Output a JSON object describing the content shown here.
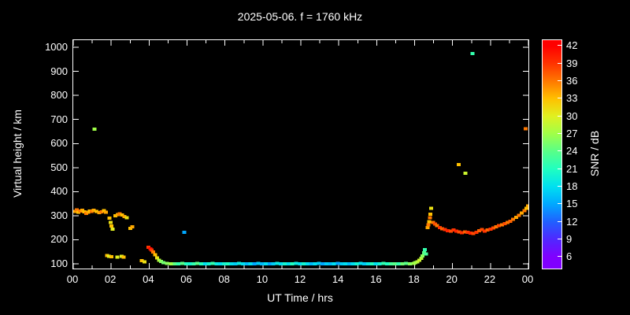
{
  "page": {
    "background": "#000000",
    "text_color": "#ffffff"
  },
  "chart_data": {
    "type": "scatter",
    "title": "2025-05-06. f = 1760 kHz",
    "xlabel": "UT Time / hrs",
    "ylabel": "Virtual height / km",
    "cblabel": "SNR / dB",
    "x_range": [
      0,
      24
    ],
    "y_range": [
      80,
      1030
    ],
    "cb_range": [
      4,
      43
    ],
    "x_ticks": [
      {
        "v": 0,
        "label": "00"
      },
      {
        "v": 2,
        "label": "02"
      },
      {
        "v": 4,
        "label": "04"
      },
      {
        "v": 6,
        "label": "06"
      },
      {
        "v": 8,
        "label": "08"
      },
      {
        "v": 10,
        "label": "10"
      },
      {
        "v": 12,
        "label": "12"
      },
      {
        "v": 14,
        "label": "14"
      },
      {
        "v": 16,
        "label": "16"
      },
      {
        "v": 18,
        "label": "18"
      },
      {
        "v": 20,
        "label": "20"
      },
      {
        "v": 22,
        "label": "22"
      },
      {
        "v": 24,
        "label": "00"
      }
    ],
    "x_minor_ticks": [
      1,
      3,
      5,
      7,
      9,
      11,
      13,
      15,
      17,
      19,
      21,
      23
    ],
    "y_ticks": [
      100,
      200,
      300,
      400,
      500,
      600,
      700,
      800,
      900,
      1000
    ],
    "cb_ticks": [
      6,
      9,
      12,
      15,
      18,
      21,
      24,
      27,
      30,
      33,
      36,
      39,
      42
    ],
    "colormap": [
      {
        "v": 6,
        "c": "#8000ff"
      },
      {
        "v": 9,
        "c": "#5028ff"
      },
      {
        "v": 12,
        "c": "#2060ff"
      },
      {
        "v": 15,
        "c": "#00a8ff"
      },
      {
        "v": 18,
        "c": "#00e0f0"
      },
      {
        "v": 21,
        "c": "#20ffc0"
      },
      {
        "v": 24,
        "c": "#58ff88"
      },
      {
        "v": 27,
        "c": "#a0ff48"
      },
      {
        "v": 30,
        "c": "#e0f020"
      },
      {
        "v": 33,
        "c": "#ffc000"
      },
      {
        "v": 36,
        "c": "#ff7800"
      },
      {
        "v": 39,
        "c": "#ff3400"
      },
      {
        "v": 42,
        "c": "#ff0000"
      }
    ],
    "grid": false,
    "points": [
      [
        0.08,
        318,
        34
      ],
      [
        0.18,
        324,
        36
      ],
      [
        0.28,
        314,
        33
      ],
      [
        0.38,
        319,
        36
      ],
      [
        0.48,
        323,
        34
      ],
      [
        0.58,
        316,
        33
      ],
      [
        0.68,
        310,
        36
      ],
      [
        0.78,
        314,
        34
      ],
      [
        0.88,
        319,
        33
      ],
      [
        0.98,
        317,
        36
      ],
      [
        1.08,
        322,
        34
      ],
      [
        1.12,
        660,
        27
      ],
      [
        1.22,
        318,
        33
      ],
      [
        1.36,
        312,
        34
      ],
      [
        1.5,
        316,
        36
      ],
      [
        1.62,
        321,
        33
      ],
      [
        1.72,
        314,
        34
      ],
      [
        1.78,
        134,
        33
      ],
      [
        1.88,
        131,
        30
      ],
      [
        2.02,
        129,
        33
      ],
      [
        2.32,
        127,
        30
      ],
      [
        2.56,
        130,
        30
      ],
      [
        2.66,
        127,
        33
      ],
      [
        1.92,
        290,
        33
      ],
      [
        1.97,
        272,
        31
      ],
      [
        2.02,
        257,
        33
      ],
      [
        2.07,
        243,
        30
      ],
      [
        2.22,
        299,
        33
      ],
      [
        2.34,
        304,
        34
      ],
      [
        2.46,
        308,
        36
      ],
      [
        2.58,
        302,
        33
      ],
      [
        2.7,
        297,
        34
      ],
      [
        2.82,
        291,
        31
      ],
      [
        3.02,
        247,
        33
      ],
      [
        3.12,
        254,
        34
      ],
      [
        3.62,
        112,
        33
      ],
      [
        3.76,
        108,
        31
      ],
      [
        3.96,
        168,
        39
      ],
      [
        4.06,
        162,
        42
      ],
      [
        4.14,
        157,
        39
      ],
      [
        4.22,
        149,
        36
      ],
      [
        4.32,
        137,
        33
      ],
      [
        4.42,
        125,
        31
      ],
      [
        4.52,
        115,
        28
      ],
      [
        4.62,
        109,
        26
      ],
      [
        4.75,
        104,
        25
      ],
      [
        4.95,
        101,
        26
      ],
      [
        5.15,
        100,
        27
      ],
      [
        5.35,
        99,
        24
      ],
      [
        5.55,
        100,
        22
      ],
      [
        5.75,
        101,
        24
      ],
      [
        5.85,
        230,
        15
      ],
      [
        5.95,
        100,
        21
      ],
      [
        6.15,
        99,
        20
      ],
      [
        6.35,
        100,
        22
      ],
      [
        6.55,
        101,
        24
      ],
      [
        6.75,
        100,
        21
      ],
      [
        6.95,
        99,
        18
      ],
      [
        7.15,
        100,
        20
      ],
      [
        7.35,
        101,
        22
      ],
      [
        7.55,
        100,
        19
      ],
      [
        7.75,
        99,
        18
      ],
      [
        7.95,
        100,
        20
      ],
      [
        8.15,
        100,
        21
      ],
      [
        8.35,
        99,
        18
      ],
      [
        8.55,
        100,
        17
      ],
      [
        8.75,
        101,
        19
      ],
      [
        8.95,
        100,
        18
      ],
      [
        9.15,
        99,
        16
      ],
      [
        9.35,
        100,
        18
      ],
      [
        9.55,
        100,
        15
      ],
      [
        9.75,
        101,
        17
      ],
      [
        9.95,
        100,
        16
      ],
      [
        10.15,
        99,
        18
      ],
      [
        10.35,
        100,
        15
      ],
      [
        10.55,
        100,
        17
      ],
      [
        10.75,
        101,
        19
      ],
      [
        10.95,
        100,
        18
      ],
      [
        11.15,
        100,
        20
      ],
      [
        11.35,
        99,
        18
      ],
      [
        11.55,
        100,
        21
      ],
      [
        11.75,
        101,
        19
      ],
      [
        11.95,
        100,
        18
      ],
      [
        12.15,
        100,
        20
      ],
      [
        12.35,
        99,
        18
      ],
      [
        12.55,
        100,
        16
      ],
      [
        12.75,
        100,
        18
      ],
      [
        12.95,
        101,
        17
      ],
      [
        13.15,
        100,
        15
      ],
      [
        13.35,
        99,
        17
      ],
      [
        13.55,
        100,
        16
      ],
      [
        13.75,
        100,
        18
      ],
      [
        13.95,
        101,
        15
      ],
      [
        14.15,
        100,
        17
      ],
      [
        14.35,
        100,
        18
      ],
      [
        14.55,
        99,
        16
      ],
      [
        14.75,
        100,
        18
      ],
      [
        14.95,
        100,
        20
      ],
      [
        15.15,
        101,
        18
      ],
      [
        15.35,
        100,
        17
      ],
      [
        15.55,
        100,
        19
      ],
      [
        15.75,
        99,
        21
      ],
      [
        15.95,
        100,
        18
      ],
      [
        16.15,
        100,
        20
      ],
      [
        16.35,
        101,
        22
      ],
      [
        16.55,
        100,
        21
      ],
      [
        16.75,
        100,
        23
      ],
      [
        16.95,
        99,
        24
      ],
      [
        17.15,
        100,
        22
      ],
      [
        17.35,
        100,
        25
      ],
      [
        17.55,
        101,
        24
      ],
      [
        17.75,
        100,
        26
      ],
      [
        17.95,
        102,
        27
      ],
      [
        18.05,
        104,
        27
      ],
      [
        18.15,
        108,
        28
      ],
      [
        18.25,
        114,
        29
      ],
      [
        18.35,
        122,
        28
      ],
      [
        18.42,
        132,
        26
      ],
      [
        18.5,
        145,
        24
      ],
      [
        18.55,
        158,
        22
      ],
      [
        18.6,
        140,
        23
      ],
      [
        18.68,
        250,
        34
      ],
      [
        18.72,
        262,
        36
      ],
      [
        18.76,
        275,
        33
      ],
      [
        18.8,
        291,
        36
      ],
      [
        18.84,
        306,
        33
      ],
      [
        18.88,
        330,
        31
      ],
      [
        18.98,
        272,
        36
      ],
      [
        19.08,
        265,
        38
      ],
      [
        19.18,
        258,
        36
      ],
      [
        19.32,
        251,
        39
      ],
      [
        19.46,
        246,
        37
      ],
      [
        19.6,
        242,
        39
      ],
      [
        19.75,
        238,
        40
      ],
      [
        19.9,
        236,
        38
      ],
      [
        20.05,
        240,
        39
      ],
      [
        20.2,
        236,
        40
      ],
      [
        20.35,
        232,
        38
      ],
      [
        20.5,
        229,
        39
      ],
      [
        20.65,
        233,
        37
      ],
      [
        20.8,
        230,
        39
      ],
      [
        20.95,
        228,
        40
      ],
      [
        21.1,
        226,
        38
      ],
      [
        21.25,
        231,
        39
      ],
      [
        21.4,
        237,
        37
      ],
      [
        21.55,
        242,
        38
      ],
      [
        21.7,
        236,
        39
      ],
      [
        21.85,
        240,
        37
      ],
      [
        22.0,
        244,
        39
      ],
      [
        22.15,
        249,
        38
      ],
      [
        22.3,
        254,
        36
      ],
      [
        22.45,
        258,
        38
      ],
      [
        22.6,
        262,
        36
      ],
      [
        22.75,
        266,
        38
      ],
      [
        22.9,
        271,
        36
      ],
      [
        23.05,
        277,
        37
      ],
      [
        23.2,
        285,
        36
      ],
      [
        23.35,
        293,
        34
      ],
      [
        23.5,
        301,
        36
      ],
      [
        23.65,
        311,
        34
      ],
      [
        23.8,
        321,
        36
      ],
      [
        23.9,
        330,
        33
      ],
      [
        23.97,
        340,
        34
      ],
      [
        20.32,
        512,
        33
      ],
      [
        20.68,
        476,
        29
      ],
      [
        21.05,
        975,
        22
      ],
      [
        23.86,
        662,
        36
      ]
    ]
  }
}
